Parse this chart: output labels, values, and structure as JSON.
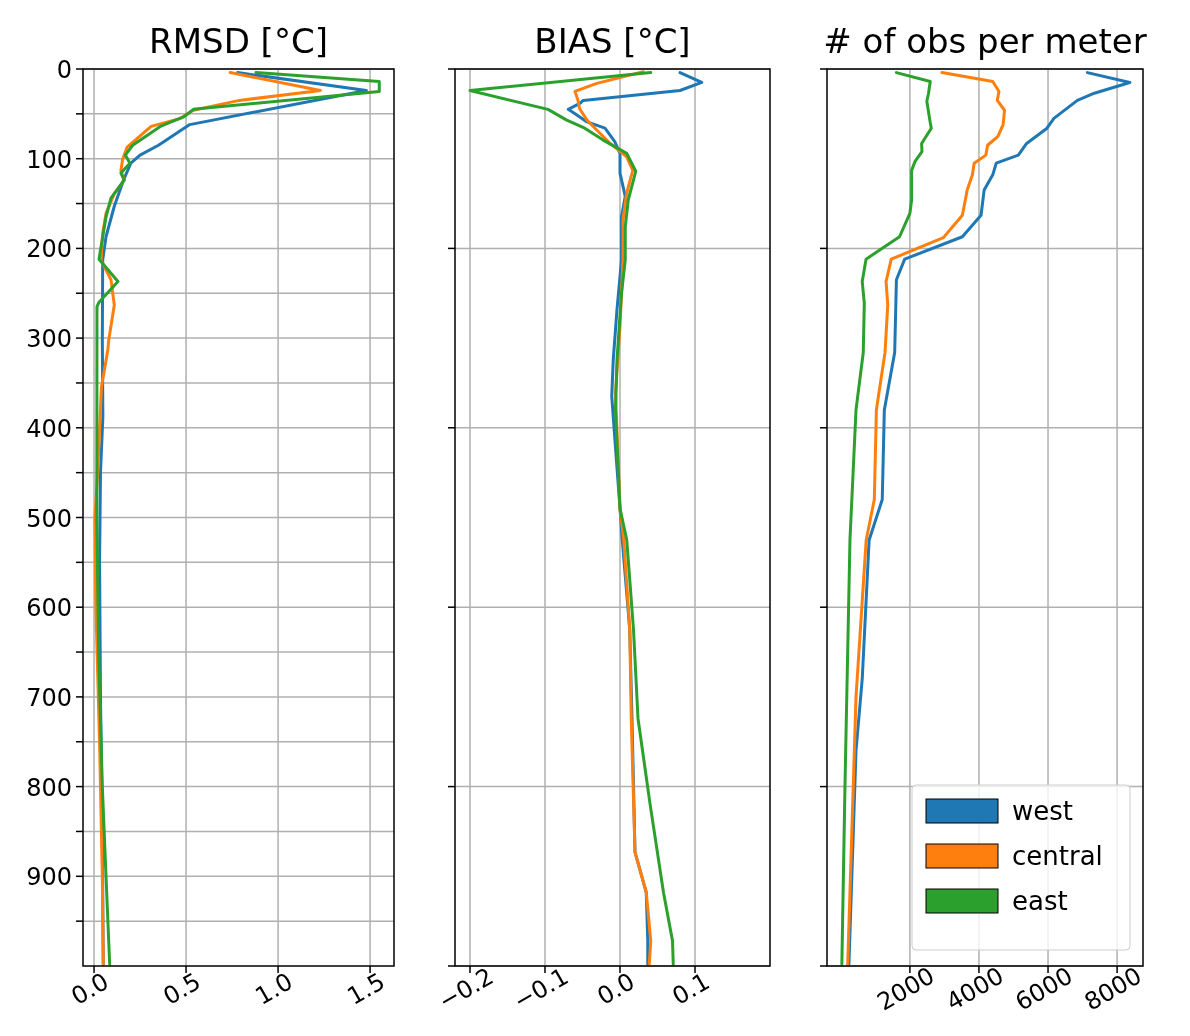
{
  "chart_data": [
    {
      "type": "line",
      "title": "RMSD [°C]",
      "xlim": [
        -0.06,
        1.63
      ],
      "xticks": [
        {
          "value": 0,
          "label": "0.0"
        },
        {
          "value": 0.5,
          "label": "0.5"
        },
        {
          "value": 1,
          "label": "1.0"
        },
        {
          "value": 1.5,
          "label": "1.5"
        }
      ],
      "ylim": [
        1000,
        0
      ],
      "yticks": [
        0,
        {
          "value": 50,
          "label": null
        },
        100,
        {
          "value": 150,
          "label": null
        },
        200,
        {
          "value": 250,
          "label": null
        },
        300,
        {
          "value": 350,
          "label": null
        },
        400,
        {
          "value": 450,
          "label": null
        },
        500,
        {
          "value": 550,
          "label": null
        },
        600,
        {
          "value": 650,
          "label": null
        },
        700,
        {
          "value": 750,
          "label": null
        },
        800,
        {
          "value": 850,
          "label": null
        },
        900,
        {
          "value": 950,
          "label": null
        }
      ],
      "grid": true,
      "legend": false,
      "line_style": "solid",
      "marker": "none",
      "series": [
        {
          "color": "#1f77b4",
          "x": [
            0.78,
            1.48,
            0.52,
            0.35,
            0.25,
            0.2,
            0.16,
            0.11,
            0.065,
            0.047,
            0.045,
            0.048,
            0.035,
            0.03,
            0.035,
            0.045,
            0.05
          ],
          "values": [
            4,
            24,
            62,
            85,
            96,
            105,
            124,
            153,
            187,
            213,
            302,
            387,
            450,
            550,
            700,
            850,
            998
          ]
        },
        {
          "color": "#ff7f0e",
          "x": [
            0.74,
            1.23,
            0.79,
            0.54,
            0.47,
            0.31,
            0.26,
            0.18,
            0.155,
            0.146,
            0.164,
            0.11,
            0.065,
            0.047,
            0.038,
            0.092,
            0.11,
            0.08,
            0.075,
            0.04,
            0.02,
            0.005,
            0.01,
            0.03,
            0.045,
            0.05
          ],
          "values": [
            4,
            24,
            35,
            46,
            55,
            64,
            73,
            87,
            101,
            113,
            124,
            139,
            161,
            183,
            213,
            235,
            263,
            302,
            313,
            355,
            450,
            500,
            600,
            750,
            900,
            998
          ]
        },
        {
          "color": "#2ca02c",
          "x": [
            0.88,
            1.55,
            1.55,
            0.54,
            0.49,
            0.36,
            0.21,
            0.17,
            0.195,
            0.146,
            0.164,
            0.092,
            0.065,
            0.027,
            0.13,
            0.027,
            0.016,
            0.015,
            0.025,
            0.045,
            0.065,
            0.085
          ],
          "values": [
            4,
            14,
            25,
            45,
            53,
            64,
            85,
            96,
            105,
            116,
            124,
            144,
            165,
            212,
            237,
            260,
            265,
            500,
            650,
            800,
            900,
            998
          ]
        }
      ]
    },
    {
      "type": "line",
      "title": "BIAS [°C]",
      "xlim": [
        -0.22,
        0.2
      ],
      "xticks": [
        {
          "value": -0.2,
          "label": "−0.2"
        },
        {
          "value": -0.1,
          "label": "−0.1"
        },
        {
          "value": 0,
          "label": "0.0"
        },
        {
          "value": 0.1,
          "label": "0.1"
        }
      ],
      "ylim": [
        1000,
        0
      ],
      "yticks": [
        {
          "value": 0,
          "label": null
        },
        {
          "value": 200,
          "label": null
        },
        {
          "value": 400,
          "label": null
        },
        {
          "value": 600,
          "label": null
        },
        {
          "value": 800,
          "label": null
        },
        {
          "value": 1000,
          "label": null
        }
      ],
      "tick_labels": "x",
      "grid": true,
      "legend": false,
      "line_style": "solid",
      "marker": "none",
      "series": [
        {
          "color": "#1f77b4",
          "x": [
            0.08,
            0.109,
            0.08,
            -0.049,
            -0.053,
            -0.069,
            -0.058,
            -0.044,
            -0.02,
            -0.007,
            0,
            0,
            0.007,
            0.002,
            0.002,
            -0.004,
            -0.009,
            -0.011,
            0,
            0.003,
            0.013,
            0.016,
            0.02,
            0.035,
            0.037,
            0.037
          ],
          "values": [
            4,
            15,
            24,
            35,
            38,
            45,
            51,
            59,
            66,
            81,
            94,
            116,
            142,
            165,
            213,
            268,
            324,
            365,
            490,
            525,
            625,
            724,
            873,
            918,
            972,
            998
          ]
        },
        {
          "color": "#ff7f0e",
          "x": [
            0.031,
            -0.031,
            -0.06,
            -0.056,
            -0.054,
            -0.044,
            -0.031,
            -0.013,
            0.009,
            0.017,
            0.009,
            0.004,
            0.004,
            0,
            -0.006,
            0,
            0.005,
            0.013,
            0.015,
            0.02,
            0.035,
            0.041,
            0.039
          ],
          "values": [
            3,
            16,
            25,
            35,
            44,
            57,
            68,
            83,
            98,
            113,
            138,
            168,
            213,
            287,
            361,
            490,
            525,
            625,
            724,
            873,
            918,
            972,
            998
          ]
        },
        {
          "color": "#2ca02c",
          "x": [
            0.041,
            -0.2,
            -0.096,
            -0.071,
            -0.047,
            -0.023,
            0.009,
            0.021,
            0.011,
            0.007,
            0.007,
            0.002,
            -0.004,
            -0.006,
            0,
            0.009,
            0.018,
            0.024,
            0.04,
            0.058,
            0.07,
            0.071
          ],
          "values": [
            4,
            24,
            45,
            57,
            66,
            79,
            94,
            114,
            146,
            176,
            213,
            250,
            324,
            380,
            490,
            525,
            625,
            724,
            819,
            918,
            972,
            998
          ]
        }
      ]
    },
    {
      "type": "line",
      "title": "# of obs per meter",
      "xlim": [
        -400,
        8750
      ],
      "xticks": [
        2000,
        4000,
        6000,
        8000
      ],
      "ylim": [
        1000,
        0
      ],
      "yticks": [
        {
          "value": 0,
          "label": null
        },
        {
          "value": 200,
          "label": null
        },
        {
          "value": 400,
          "label": null
        },
        {
          "value": 600,
          "label": null
        },
        {
          "value": 800,
          "label": null
        },
        {
          "value": 1000,
          "label": null
        }
      ],
      "tick_labels": "x",
      "grid": true,
      "legend": "bottom right",
      "line_style": "solid",
      "marker": "none",
      "series": [
        {
          "name": "west",
          "color": "#1f77b4",
          "x": [
            7140,
            8370,
            7340,
            6850,
            6170,
            5970,
            5380,
            5140,
            4500,
            4400,
            4150,
            4060,
            3520,
            1850,
            1610,
            1560,
            1260,
            1200,
            820,
            620,
            440,
            235
          ],
          "values": [
            4,
            15,
            27,
            35,
            55,
            66,
            83,
            96,
            105,
            118,
            135,
            163,
            187,
            212,
            235,
            316,
            380,
            480,
            525,
            680,
            760,
            998
          ]
        },
        {
          "name": "central",
          "color": "#ff7f0e",
          "x": [
            2930,
            4400,
            4580,
            4530,
            4740,
            4700,
            4550,
            4250,
            4200,
            3860,
            3810,
            3660,
            3520,
            2970,
            1460,
            1310,
            1360,
            1280,
            1030,
            970,
            735,
            440,
            200
          ],
          "values": [
            4,
            14,
            25,
            35,
            46,
            62,
            75,
            85,
            96,
            105,
            118,
            135,
            163,
            188,
            212,
            237,
            263,
            316,
            380,
            480,
            525,
            700,
            998
          ]
        },
        {
          "name": "east",
          "color": "#2ca02c",
          "x": [
            1610,
            2590,
            2540,
            2490,
            2590,
            2620,
            2340,
            2350,
            2150,
            2050,
            2050,
            2000,
            1700,
            730,
            620,
            680,
            650,
            440,
            265,
            120,
            30
          ],
          "values": [
            4,
            14,
            27,
            36,
            60,
            66,
            83,
            92,
            103,
            113,
            146,
            161,
            187,
            212,
            237,
            261,
            316,
            380,
            525,
            800,
            998
          ]
        }
      ]
    }
  ]
}
